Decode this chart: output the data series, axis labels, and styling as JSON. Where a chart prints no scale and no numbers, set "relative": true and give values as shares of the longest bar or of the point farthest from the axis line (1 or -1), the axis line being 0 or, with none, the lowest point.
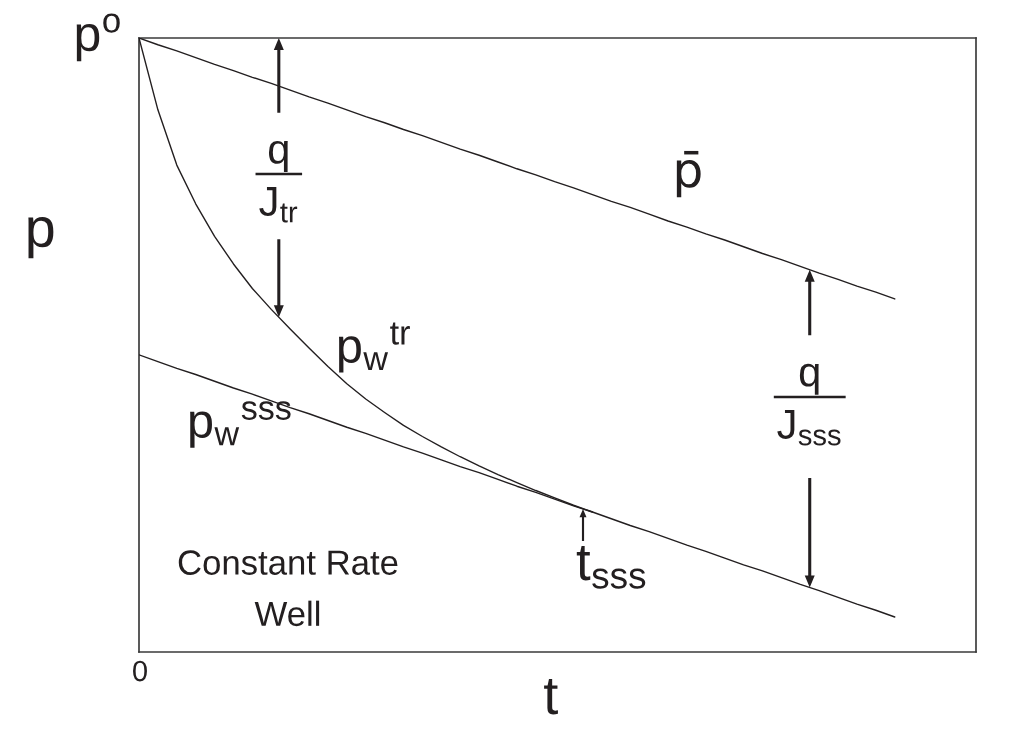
{
  "chart_data": {
    "type": "line",
    "relative": true,
    "xlabel": "t",
    "ylabel": "p",
    "line_style": "solid",
    "categories": [
      null,
      null,
      null,
      null,
      null,
      null,
      null,
      null,
      null,
      null,
      null,
      null,
      null,
      null,
      null,
      null,
      null,
      null,
      null,
      null,
      null,
      null,
      null,
      null,
      null,
      null,
      null,
      null,
      null,
      null,
      null,
      null,
      null,
      null,
      null,
      null,
      null,
      null,
      null,
      null,
      null
    ],
    "series": [
      {
        "name": "p̄",
        "color": "#231f20",
        "values": [
          1,
          0.989,
          0.979,
          0.968,
          0.957,
          0.947,
          0.936,
          0.926,
          0.915,
          0.904,
          0.894,
          0.883,
          0.872,
          0.862,
          0.851,
          0.841,
          0.83,
          0.819,
          0.809,
          0.798,
          0.787,
          0.777,
          0.766,
          0.756,
          0.745,
          0.734,
          0.724,
          0.713,
          0.702,
          0.692,
          0.681,
          0.671,
          0.66,
          0.649,
          0.639,
          0.628,
          0.617,
          0.607,
          0.596,
          0.586,
          0.575
        ]
      },
      {
        "name": "p$_{w}$$^{tr}$",
        "color": "#231f20",
        "values": [
          1,
          0.883,
          0.793,
          0.73,
          0.677,
          0.632,
          0.592,
          0.558,
          0.526,
          0.495,
          0.465,
          0.437,
          0.412,
          0.39,
          0.369,
          0.351,
          0.334,
          0.318,
          0.303,
          0.289,
          0.276,
          0.263,
          0.251,
          0.239,
          0.228,
          null,
          null,
          null,
          null,
          null,
          null,
          null,
          null,
          null,
          null,
          null,
          null,
          null,
          null,
          null,
          null
        ]
      },
      {
        "name": "p$_{w}$$^{sss}$",
        "color": "#231f20",
        "values": [
          0.484,
          0.473,
          0.462,
          0.452,
          0.441,
          0.43,
          0.42,
          0.409,
          0.398,
          0.388,
          0.377,
          0.366,
          0.356,
          0.345,
          0.334,
          0.324,
          0.313,
          0.302,
          0.292,
          0.281,
          0.27,
          0.26,
          0.249,
          0.238,
          0.228,
          0.217,
          0.206,
          0.196,
          0.185,
          0.174,
          0.164,
          0.153,
          0.142,
          0.132,
          0.121,
          0.11,
          0.1,
          0.089,
          0.078,
          0.068,
          0.057
        ]
      }
    ],
    "annotations": [
      "p$^{o}$",
      "0",
      "q\nJ$_{tr}$",
      "q\nJ$_{sss}$",
      "t$_{sss}$",
      "Constant Rate\nWell"
    ]
  }
}
